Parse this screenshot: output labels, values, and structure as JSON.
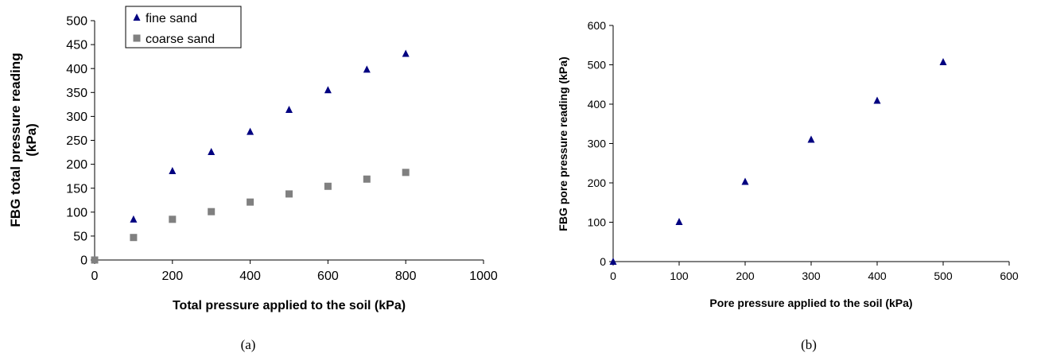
{
  "chart_data": [
    {
      "type": "scatter",
      "caption": "(a)",
      "xlabel": "Total pressure applied to the soil (kPa)",
      "ylabel_lines": [
        "FBG total pressure reading",
        "(kPa)"
      ],
      "xlim": [
        0,
        1000
      ],
      "ylim": [
        0,
        500
      ],
      "xticks": [
        0,
        200,
        400,
        600,
        800,
        1000
      ],
      "yticks": [
        0,
        50,
        100,
        150,
        200,
        250,
        300,
        350,
        400,
        450,
        500
      ],
      "legend_position": "top-left",
      "grid": false,
      "series": [
        {
          "name": "fine sand",
          "color": "#000080",
          "marker": "triangle",
          "points": [
            [
              0,
              0
            ],
            [
              100,
              85
            ],
            [
              200,
              186
            ],
            [
              300,
              226
            ],
            [
              400,
              268
            ],
            [
              500,
              314
            ],
            [
              600,
              355
            ],
            [
              700,
              398
            ],
            [
              800,
              431
            ]
          ]
        },
        {
          "name": "coarse sand",
          "color": "#808080",
          "marker": "square",
          "points": [
            [
              0,
              0
            ],
            [
              100,
              47
            ],
            [
              200,
              85
            ],
            [
              300,
              101
            ],
            [
              400,
              121
            ],
            [
              500,
              138
            ],
            [
              600,
              154
            ],
            [
              700,
              169
            ],
            [
              800,
              183
            ]
          ]
        }
      ]
    },
    {
      "type": "scatter",
      "caption": "(b)",
      "xlabel": "Pore pressure applied to the soil (kPa)",
      "ylabel_lines": [
        "FBG pore pressure reading (kPa)"
      ],
      "xlim": [
        0,
        600
      ],
      "ylim": [
        0,
        600
      ],
      "xticks": [
        0,
        100,
        200,
        300,
        400,
        500,
        600
      ],
      "yticks": [
        0,
        100,
        200,
        300,
        400,
        500,
        600
      ],
      "grid": false,
      "series": [
        {
          "color": "#000080",
          "marker": "triangle",
          "points": [
            [
              0,
              0
            ],
            [
              100,
              101
            ],
            [
              200,
              203
            ],
            [
              300,
              310
            ],
            [
              400,
              409
            ],
            [
              500,
              507
            ]
          ]
        }
      ]
    }
  ]
}
